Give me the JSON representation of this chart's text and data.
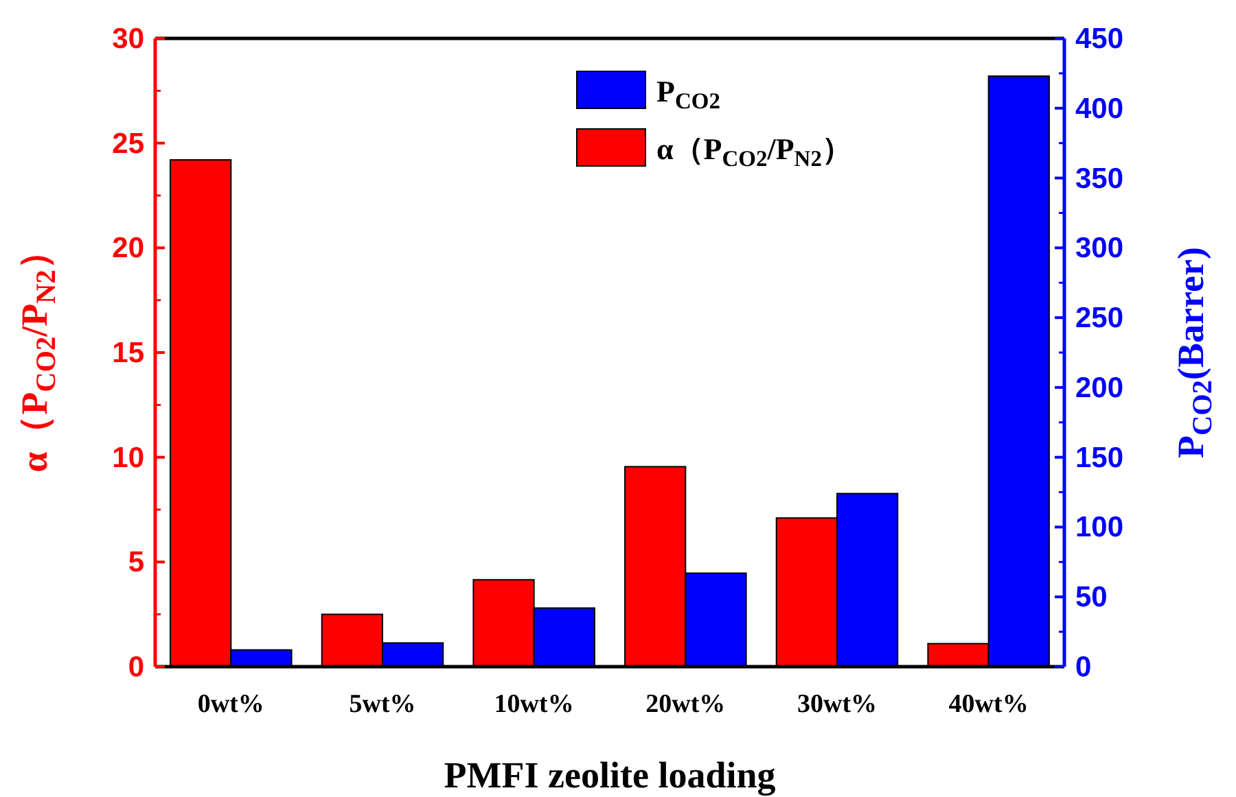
{
  "chart_data": {
    "type": "bar",
    "categories": [
      "0wt%",
      "5wt%",
      "10wt%",
      "20wt%",
      "30wt%",
      "40wt%"
    ],
    "xlabel": "PMFI zeolite loading",
    "ylabel": "α（P$_{CO2}$/P$_{N2}$）",
    "y2label": "P$_{CO2}$(Barrer)",
    "series": [
      {
        "name": "α（P$_{CO2}$/P$_{N2}$）",
        "color": "#ff0000",
        "values": [
          24.2,
          2.5,
          4.15,
          9.55,
          7.1,
          1.1
        ]
      },
      {
        "name": "P$_{CO2}$",
        "color": "#0000ff",
        "axis": "y2",
        "values": [
          12,
          17,
          42,
          67,
          124,
          423
        ]
      }
    ],
    "ylim": [
      0,
      30
    ],
    "yticks": [
      0,
      5,
      10,
      15,
      20,
      25,
      30
    ],
    "y2lim": [
      0,
      450
    ],
    "y2ticks": [
      0,
      50,
      100,
      150,
      200,
      250,
      300,
      350,
      400,
      450
    ],
    "legend": "top right",
    "grid": false
  }
}
